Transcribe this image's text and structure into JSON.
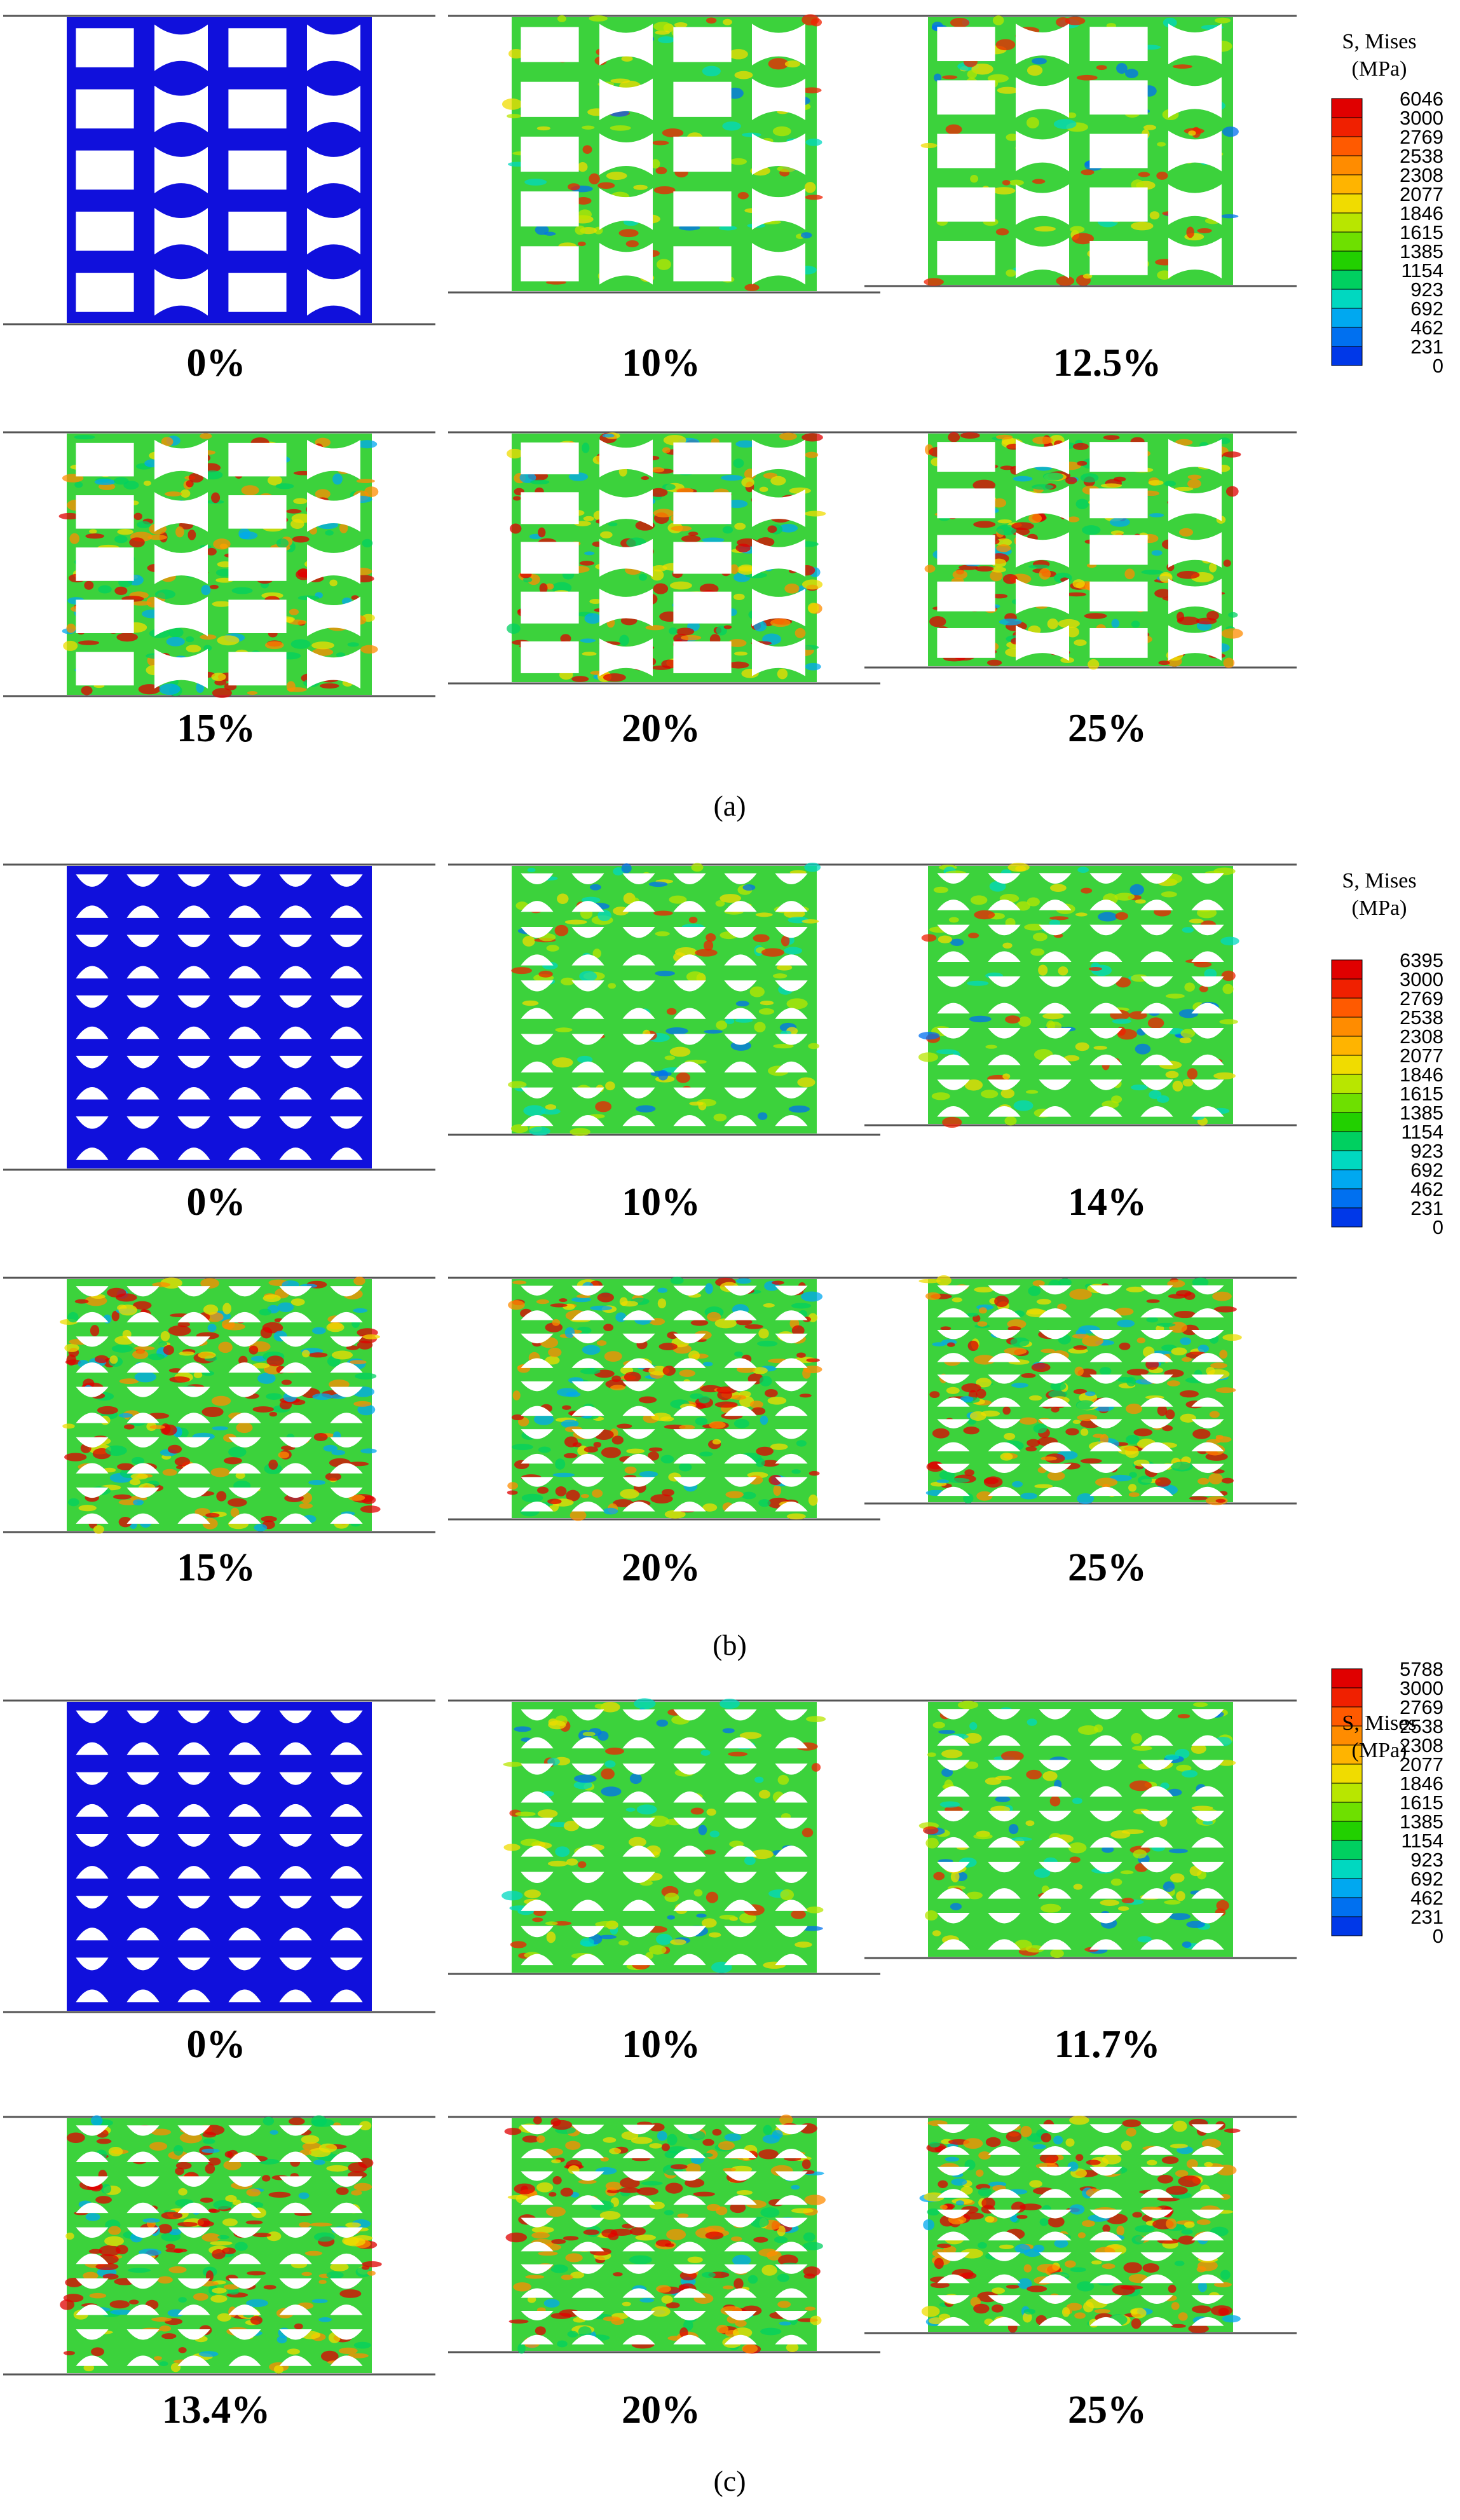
{
  "panels": [
    {
      "caption": "(a)",
      "legend": {
        "title_line1": "S, Mises",
        "title_line2": "(MPa)",
        "ticks": [
          "6046",
          "3000",
          "2769",
          "2538",
          "2308",
          "2077",
          "1846",
          "1615",
          "1385",
          "1154",
          "923",
          "692",
          "462",
          "231",
          "0"
        ]
      },
      "frames": [
        {
          "label": "0%",
          "stress": "low"
        },
        {
          "label": "10%",
          "stress": "mid"
        },
        {
          "label": "12.5%",
          "stress": "mid"
        },
        {
          "label": "15%",
          "stress": "high"
        },
        {
          "label": "20%",
          "stress": "high"
        },
        {
          "label": "25%",
          "stress": "high"
        }
      ]
    },
    {
      "caption": "(b)",
      "legend": {
        "title_line1": "S, Mises",
        "title_line2": "(MPa)",
        "ticks": [
          "6395",
          "3000",
          "2769",
          "2538",
          "2308",
          "2077",
          "1846",
          "1615",
          "1385",
          "1154",
          "923",
          "692",
          "462",
          "231",
          "0"
        ]
      },
      "frames": [
        {
          "label": "0%",
          "stress": "low"
        },
        {
          "label": "10%",
          "stress": "mid"
        },
        {
          "label": "14%",
          "stress": "mid"
        },
        {
          "label": "15%",
          "stress": "high"
        },
        {
          "label": "20%",
          "stress": "high"
        },
        {
          "label": "25%",
          "stress": "high"
        }
      ]
    },
    {
      "caption": "(c)",
      "legend": {
        "title_line1": "S, Mises",
        "title_line2": "(MPa)",
        "ticks": [
          "5788",
          "3000",
          "2769",
          "2538",
          "2308",
          "2077",
          "1846",
          "1615",
          "1385",
          "1154",
          "923",
          "692",
          "462",
          "231",
          "0"
        ]
      },
      "frames": [
        {
          "label": "0%",
          "stress": "low"
        },
        {
          "label": "10%",
          "stress": "mid"
        },
        {
          "label": "11.7%",
          "stress": "mid"
        },
        {
          "label": "13.4%",
          "stress": "high"
        },
        {
          "label": "20%",
          "stress": "high"
        },
        {
          "label": "25%",
          "stress": "high"
        }
      ]
    }
  ],
  "colors": {
    "scale": [
      "#e00000",
      "#f02000",
      "#ff5a00",
      "#ff8c00",
      "#ffb400",
      "#f0dc00",
      "#b8e600",
      "#6ee000",
      "#22d000",
      "#00d060",
      "#00d8c0",
      "#00a8f0",
      "#0070f0",
      "#0038e8",
      "#0000e0"
    ],
    "unloaded": "#1010dc",
    "holes": "#ffffff",
    "plate": "#555555"
  }
}
